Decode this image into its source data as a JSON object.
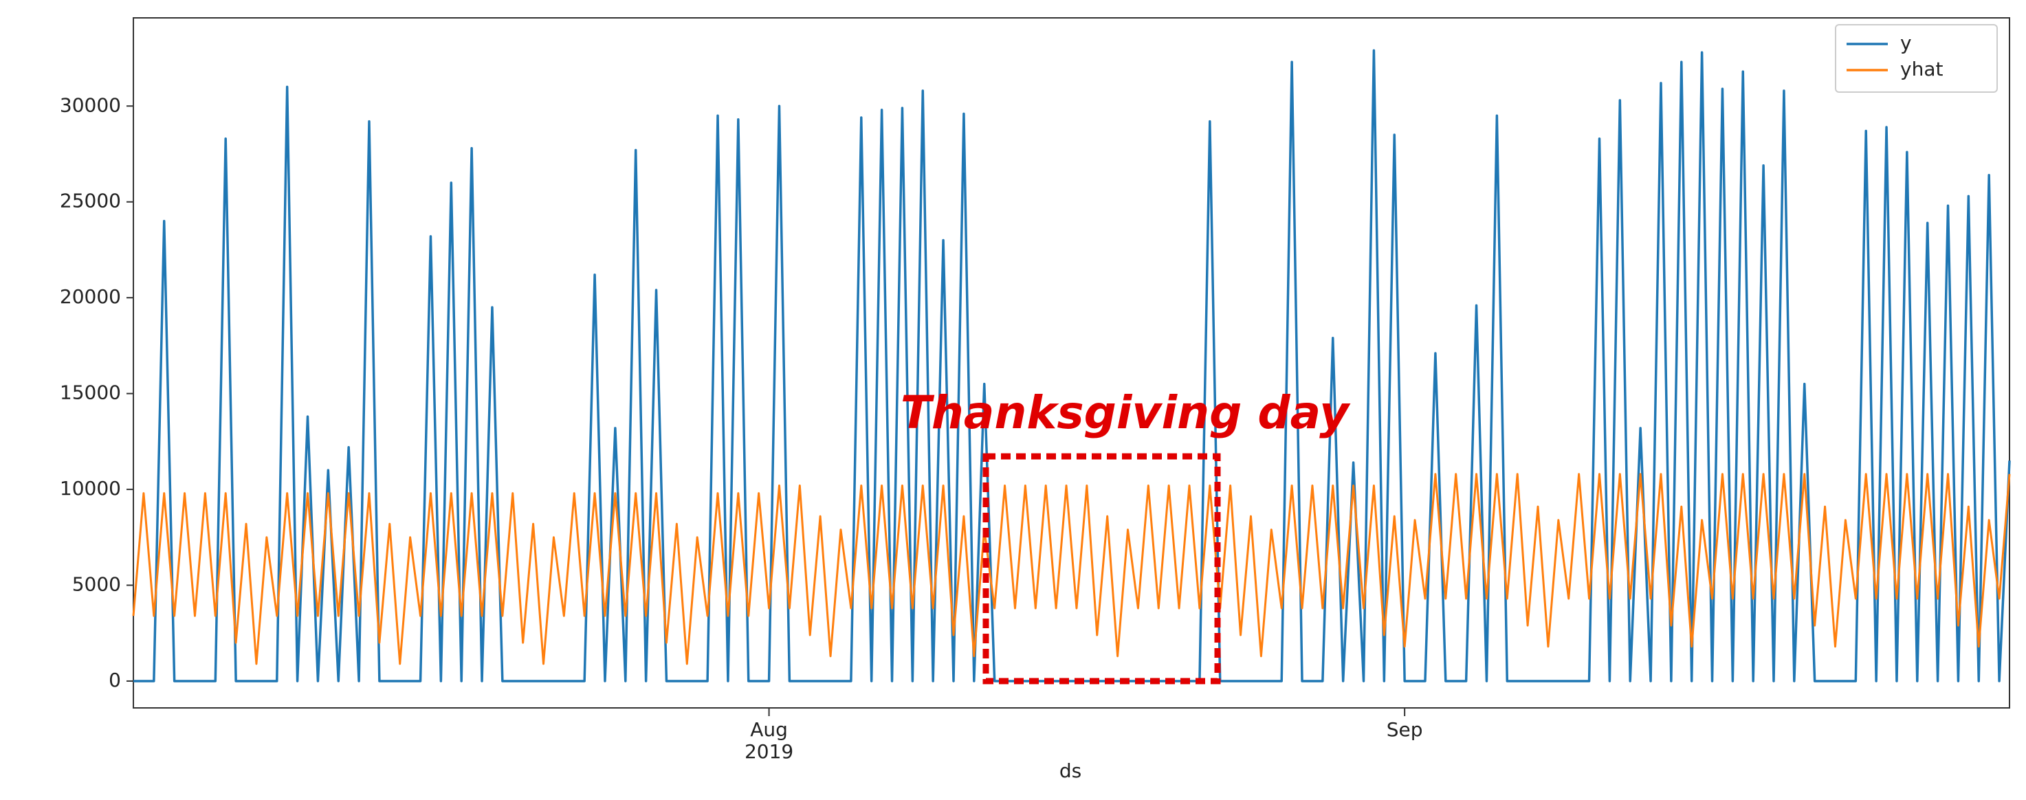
{
  "chart_data": {
    "type": "line",
    "x_label": "ds",
    "annotation": "Thanksgiving day",
    "legend": "upper right",
    "categories": [
      null,
      null,
      null,
      null,
      null,
      null,
      null,
      null,
      null,
      null,
      null,
      null,
      null,
      null,
      null,
      null,
      null,
      null,
      null,
      null,
      null,
      null,
      null,
      null,
      null,
      null,
      null,
      null,
      null,
      null,
      null,
      null,
      null,
      null,
      null,
      null,
      null,
      null,
      null,
      null,
      null,
      null,
      null,
      null,
      null,
      null,
      null,
      null,
      null,
      null,
      null,
      null,
      null,
      null,
      null,
      null,
      null,
      null,
      null,
      null,
      null,
      null,
      "Aug\n2019",
      null,
      null,
      null,
      null,
      null,
      null,
      null,
      null,
      null,
      null,
      null,
      null,
      null,
      null,
      null,
      null,
      null,
      null,
      null,
      null,
      null,
      null,
      null,
      null,
      null,
      null,
      null,
      null,
      null,
      null,
      null,
      null,
      null,
      null,
      null,
      null,
      null,
      null,
      null,
      null,
      null,
      null,
      null,
      null,
      null,
      null,
      null,
      null,
      null,
      null,
      null,
      null,
      null,
      null,
      null,
      null,
      null,
      null,
      null,
      null,
      null,
      "Sep",
      null,
      null,
      null,
      null,
      null,
      null,
      null,
      null,
      null,
      null,
      null,
      null,
      null,
      null,
      null,
      null,
      null,
      null,
      null,
      null,
      null,
      null,
      null,
      null,
      null,
      null,
      null,
      null,
      null,
      null,
      null,
      null,
      null,
      null,
      null,
      null,
      null,
      null,
      null,
      null,
      null,
      null,
      null,
      null,
      null,
      null,
      null,
      null,
      null,
      null,
      null,
      null,
      null,
      null,
      null,
      null,
      null,
      null,
      null
    ],
    "series": [
      {
        "name": "y",
        "color": "#1f77b4",
        "values": [
          0,
          0,
          0,
          24000,
          0,
          0,
          0,
          0,
          0,
          28300,
          0,
          0,
          0,
          0,
          0,
          31000,
          0,
          13800,
          0,
          11000,
          0,
          12200,
          0,
          29200,
          0,
          0,
          0,
          0,
          0,
          23200,
          0,
          26000,
          0,
          27800,
          0,
          19500,
          0,
          0,
          0,
          0,
          0,
          0,
          0,
          0,
          0,
          21200,
          0,
          13200,
          0,
          27700,
          0,
          20400,
          0,
          0,
          0,
          0,
          0,
          29500,
          0,
          29300,
          0,
          0,
          0,
          30000,
          0,
          0,
          0,
          0,
          0,
          0,
          0,
          29400,
          0,
          29800,
          0,
          29900,
          0,
          30800,
          0,
          23000,
          0,
          29600,
          0,
          15500,
          0,
          0,
          0,
          0,
          0,
          0,
          0,
          0,
          0,
          0,
          0,
          0,
          0,
          0,
          0,
          0,
          0,
          0,
          0,
          0,
          0,
          29200,
          0,
          0,
          0,
          0,
          0,
          0,
          0,
          32300,
          0,
          0,
          0,
          17900,
          0,
          11400,
          0,
          32900,
          0,
          28500,
          0,
          0,
          0,
          17100,
          0,
          0,
          0,
          19600,
          0,
          29500,
          0,
          0,
          0,
          0,
          0,
          0,
          0,
          0,
          0,
          28300,
          0,
          30300,
          0,
          13200,
          0,
          31200,
          0,
          32300,
          0,
          32800,
          0,
          30900,
          0,
          31800,
          0,
          26900,
          0,
          30800,
          0,
          15500,
          0,
          0,
          0,
          0,
          0,
          28700,
          0,
          28900,
          0,
          27600,
          0,
          23900,
          0,
          24800,
          0,
          25300,
          0,
          26400,
          0,
          11500
        ]
      },
      {
        "name": "yhat",
        "color": "#ff7f0e",
        "values": [
          3400,
          9800,
          3400,
          9800,
          3400,
          9800,
          3400,
          9800,
          3400,
          9800,
          2000,
          8200,
          900,
          7500,
          3400,
          9800,
          3400,
          9800,
          3400,
          9800,
          3400,
          9800,
          3400,
          9800,
          2000,
          8200,
          900,
          7500,
          3400,
          9800,
          3400,
          9800,
          3400,
          9800,
          3400,
          9800,
          3400,
          9800,
          2000,
          8200,
          900,
          7500,
          3400,
          9800,
          3400,
          9800,
          3400,
          9800,
          3400,
          9800,
          3400,
          9800,
          2000,
          8200,
          900,
          7500,
          3400,
          9800,
          3400,
          9800,
          3400,
          9800,
          3800,
          10200,
          3800,
          10200,
          2400,
          8600,
          1300,
          7900,
          3800,
          10200,
          3800,
          10200,
          3800,
          10200,
          3800,
          10200,
          3800,
          10200,
          2400,
          8600,
          1300,
          7900,
          3800,
          10200,
          3800,
          10200,
          3800,
          10200,
          3800,
          10200,
          3800,
          10200,
          2400,
          8600,
          1300,
          7900,
          3800,
          10200,
          3800,
          10200,
          3800,
          10200,
          3800,
          10200,
          3800,
          10200,
          2400,
          8600,
          1300,
          7900,
          3800,
          10200,
          3800,
          10200,
          3800,
          10200,
          3800,
          10200,
          3800,
          10200,
          2400,
          8600,
          1800,
          8400,
          4300,
          10800,
          4300,
          10800,
          4300,
          10800,
          4300,
          10800,
          4300,
          10800,
          2900,
          9100,
          1800,
          8400,
          4300,
          10800,
          4300,
          10800,
          4300,
          10800,
          4300,
          10800,
          4300,
          10800,
          2900,
          9100,
          1800,
          8400,
          4300,
          10800,
          4300,
          10800,
          4300,
          10800,
          4300,
          10800,
          4300,
          10800,
          2900,
          9100,
          1800,
          8400,
          4300,
          10800,
          4300,
          10800,
          4300,
          10800,
          4300,
          10800,
          4300,
          10800,
          2900,
          9100,
          1800,
          8400,
          4300,
          10800
        ]
      }
    ],
    "ylim": [
      -1400,
      34600
    ],
    "yticks": [
      0,
      5000,
      10000,
      15000,
      20000,
      25000,
      30000
    ],
    "grid": false
  }
}
